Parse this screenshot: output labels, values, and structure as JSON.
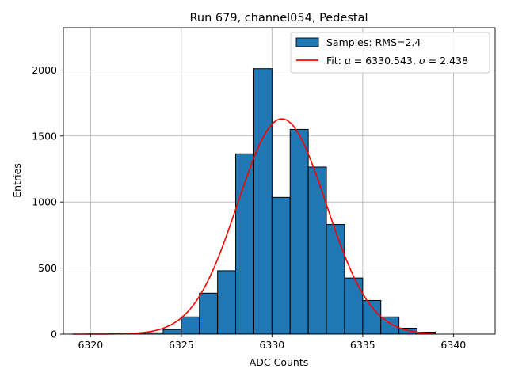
{
  "chart_data": {
    "type": "bar",
    "title": "Run 679, channel054, Pedestal",
    "xlabel": "ADC Counts",
    "ylabel": "Entries",
    "xlim": [
      6318.5,
      6342.3
    ],
    "ylim": [
      0,
      2320
    ],
    "xticks": [
      6320,
      6325,
      6330,
      6335,
      6340
    ],
    "yticks": [
      0,
      500,
      1000,
      1500,
      2000
    ],
    "grid": true,
    "legend_position": "top-right",
    "histogram": {
      "name": "Samples: RMS=2.4",
      "color": "#1f77b4",
      "bin_edges": [
        6321,
        6322,
        6323,
        6324,
        6325,
        6326,
        6327,
        6328,
        6329,
        6330,
        6331,
        6332,
        6333,
        6334,
        6335,
        6336,
        6337,
        6338,
        6339
      ],
      "counts": [
        2,
        3,
        10,
        35,
        130,
        310,
        480,
        1365,
        2010,
        1035,
        1550,
        1265,
        830,
        425,
        255,
        130,
        45,
        15
      ]
    },
    "fit": {
      "name_prefix": "Fit: ",
      "name_mu": "μ",
      "name_mid": " = 6330.543, ",
      "name_sigma": "σ",
      "name_suffix": " = 2.438",
      "color": "#ff0000",
      "mu": 6330.543,
      "sigma": 2.438,
      "amplitude": 1630,
      "x_range": [
        6319,
        6339
      ]
    }
  }
}
